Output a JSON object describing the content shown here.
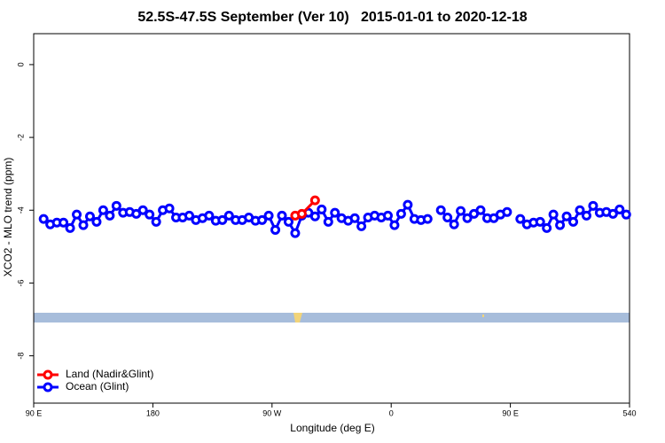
{
  "chart_data": {
    "type": "line",
    "title": "52.5S-47.5S September (Ver 10)   2015-01-01 to 2020-12-18",
    "x_label": "Longitude (deg E)",
    "y_label": "XCO2 - MLO trend (ppm)",
    "xlim": [
      90,
      540
    ],
    "xticks": [
      {
        "value": 90,
        "label": "90 E"
      },
      180,
      {
        "value": 270,
        "label": "90 W"
      },
      0,
      {
        "value": 450,
        "label": "90 E"
      },
      540
    ],
    "ylim": [
      -9.3,
      0.85
    ],
    "yticks": [
      0,
      -2,
      -4,
      -6,
      -8
    ],
    "legend": "bottom left",
    "series": [
      {
        "name": "Land (Nadir&Glint)",
        "color": "#ff0000",
        "x": [
          287.5,
          292.5,
          302.5
        ],
        "values": [
          -4.15,
          -4.1,
          -3.73
        ]
      },
      {
        "name": "Ocean (Glint)",
        "color": "#0000ff",
        "x": [
          97.5,
          102.5,
          107.5,
          112.5,
          117.5,
          122.5,
          127.5,
          132.5,
          137.5,
          142.5,
          147.5,
          152.5,
          157.5,
          162.5,
          167.5,
          172.5,
          177.5,
          182.5,
          187.5,
          192.5,
          197.5,
          202.5,
          207.5,
          212.5,
          217.5,
          222.5,
          227.5,
          232.5,
          237.5,
          242.5,
          247.5,
          252.5,
          257.5,
          262.5,
          267.5,
          272.5,
          277.5,
          282.5,
          287.5,
          292.5,
          297.5,
          302.5,
          307.5,
          312.5,
          317.5,
          322.5,
          327.5,
          332.5,
          337.5,
          342.5,
          347.5,
          352.5,
          357.5,
          362.5,
          367.5,
          372.5,
          377.5,
          382.5,
          387.5,
          392.5,
          397.5,
          402.5,
          407.5,
          412.5,
          417.5,
          422.5,
          427.5,
          432.5,
          437.5,
          442.5,
          447.5,
          452.5,
          457.5,
          462.5,
          467.5,
          472.5,
          477.5,
          482.5,
          487.5,
          492.5,
          497.5,
          502.5,
          507.5,
          512.5,
          517.5,
          522.5,
          527.5,
          532.5,
          537.5
        ],
        "values": [
          -4.24,
          -4.39,
          -4.34,
          -4.34,
          -4.49,
          -4.12,
          -4.41,
          -4.17,
          -4.32,
          -4.0,
          -4.15,
          -3.88,
          -4.07,
          -4.05,
          -4.1,
          -4.0,
          -4.12,
          -4.32,
          -4.0,
          -3.95,
          -4.2,
          -4.2,
          -4.15,
          -4.27,
          -4.22,
          -4.15,
          -4.29,
          -4.27,
          -4.15,
          -4.27,
          -4.27,
          -4.2,
          -4.29,
          -4.27,
          -4.15,
          -4.54,
          -4.15,
          -4.32,
          -4.63,
          -4.15,
          -4.07,
          -4.17,
          -3.98,
          -4.32,
          -4.07,
          -4.22,
          -4.29,
          -4.22,
          -4.44,
          -4.2,
          -4.15,
          -4.2,
          -4.15,
          -4.41,
          -4.1,
          -3.85,
          -4.24,
          -4.27,
          -4.24,
          null,
          -4.0,
          -4.2,
          -4.39,
          -4.02,
          -4.22,
          -4.1,
          -4.0,
          -4.22,
          -4.22,
          -4.12,
          -4.05,
          null,
          -4.24,
          -4.39,
          -4.34,
          -4.32,
          -4.49,
          -4.12,
          -4.41,
          -4.17,
          -4.32,
          -4.0,
          -4.15,
          -3.88,
          -4.07,
          -4.05,
          -4.1,
          -3.98,
          -4.12
        ]
      }
    ]
  }
}
